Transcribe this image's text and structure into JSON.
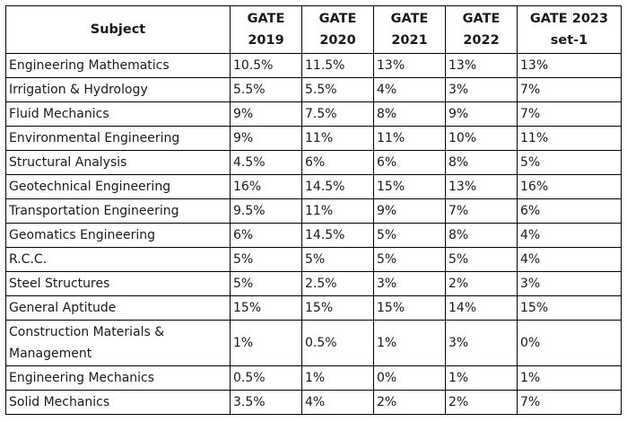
{
  "table": {
    "headers": [
      "Subject",
      "GATE 2019",
      "GATE 2020",
      "GATE 2021",
      "GATE 2022",
      "GATE 2023 set-1"
    ],
    "rows": [
      [
        "Engineering Mathematics",
        "10.5%",
        "11.5%",
        "13%",
        "13%",
        "13%"
      ],
      [
        "Irrigation & Hydrology",
        "5.5%",
        "5.5%",
        "4%",
        "3%",
        "7%"
      ],
      [
        "Fluid Mechanics",
        "9%",
        "7.5%",
        "8%",
        "9%",
        "7%"
      ],
      [
        "Environmental Engineering",
        "9%",
        "11%",
        "11%",
        "10%",
        "11%"
      ],
      [
        "Structural Analysis",
        "4.5%",
        "6%",
        "6%",
        "8%",
        "5%"
      ],
      [
        "Geotechnical Engineering",
        "16%",
        "14.5%",
        "15%",
        "13%",
        "16%"
      ],
      [
        "Transportation Engineering",
        "9.5%",
        "11%",
        "9%",
        "7%",
        "6%"
      ],
      [
        "Geomatics Engineering",
        "6%",
        "14.5%",
        "5%",
        "8%",
        "4%"
      ],
      [
        "R.C.C.",
        "5%",
        "5%",
        "5%",
        "5%",
        "4%"
      ],
      [
        "Steel Structures",
        "5%",
        "2.5%",
        "3%",
        "2%",
        "3%"
      ],
      [
        "General Aptitude",
        "15%",
        "15%",
        "15%",
        "14%",
        "15%"
      ],
      [
        "Construction Materials & Management",
        "1%",
        "0.5%",
        "1%",
        "3%",
        "0%"
      ],
      [
        "Engineering Mechanics",
        "0.5%",
        "1%",
        "0%",
        "1%",
        "1%"
      ],
      [
        "Solid Mechanics",
        "3.5%",
        "4%",
        "2%",
        "2%",
        "7%"
      ]
    ]
  }
}
